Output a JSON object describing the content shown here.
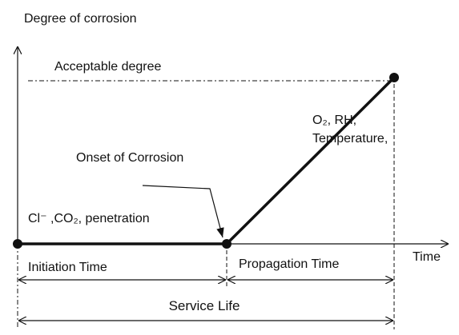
{
  "title": "Degree of corrosion",
  "labels": {
    "acceptable": "Acceptable degree",
    "propagation_factors": [
      "O₂, RH,",
      "Temperature,"
    ],
    "onset": "Onset of Corrosion",
    "initiation_factors": "Cl⁻ ,CO₂, penetration",
    "x_axis": "Time",
    "initiation_time": "Initiation Time",
    "propagation_time": "Propagation Time",
    "service_life": "Service Life"
  }
}
